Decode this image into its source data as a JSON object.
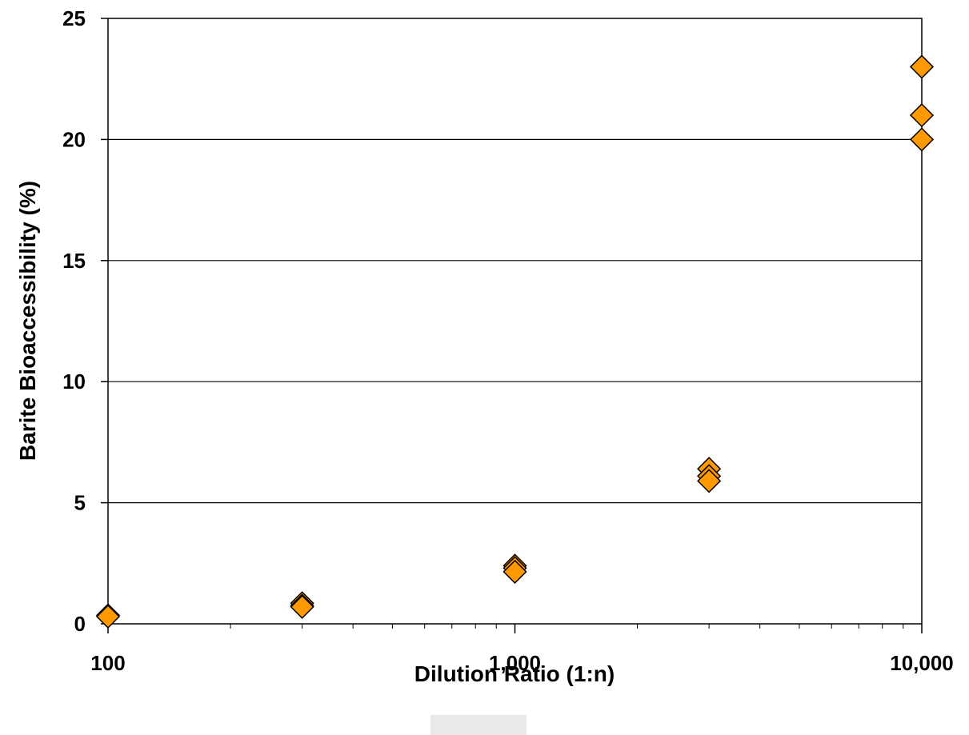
{
  "chart_data": {
    "type": "scatter",
    "title": "",
    "xlabel": "Dilution Ratio (1:n)",
    "ylabel": "Barite Bioaccessibility (%)",
    "xscale": "log",
    "xlim": [
      100,
      10000
    ],
    "ylim": [
      0,
      25
    ],
    "x_ticks": [
      100,
      1000,
      10000
    ],
    "x_tick_labels": [
      "100",
      "1,000",
      "10,000"
    ],
    "y_ticks": [
      0,
      5,
      10,
      15,
      20,
      25
    ],
    "y_tick_labels": [
      "0",
      "5",
      "10",
      "15",
      "20",
      "25"
    ],
    "grid": "horizontal",
    "legend": "none",
    "marker": "diamond",
    "marker_color": "#FF9900",
    "marker_edge_color": "#000000",
    "series": [
      {
        "points": [
          {
            "x": 100,
            "y": 0.35
          },
          {
            "x": 100,
            "y": 0.3
          },
          {
            "x": 300,
            "y": 0.85
          },
          {
            "x": 300,
            "y": 0.75
          },
          {
            "x": 300,
            "y": 0.7
          },
          {
            "x": 1000,
            "y": 2.4
          },
          {
            "x": 1000,
            "y": 2.3
          },
          {
            "x": 1000,
            "y": 2.15
          },
          {
            "x": 3000,
            "y": 6.4
          },
          {
            "x": 3000,
            "y": 6.1
          },
          {
            "x": 3000,
            "y": 5.9
          },
          {
            "x": 10000,
            "y": 23.0
          },
          {
            "x": 10000,
            "y": 21.0
          },
          {
            "x": 10000,
            "y": 20.0
          }
        ]
      }
    ]
  }
}
